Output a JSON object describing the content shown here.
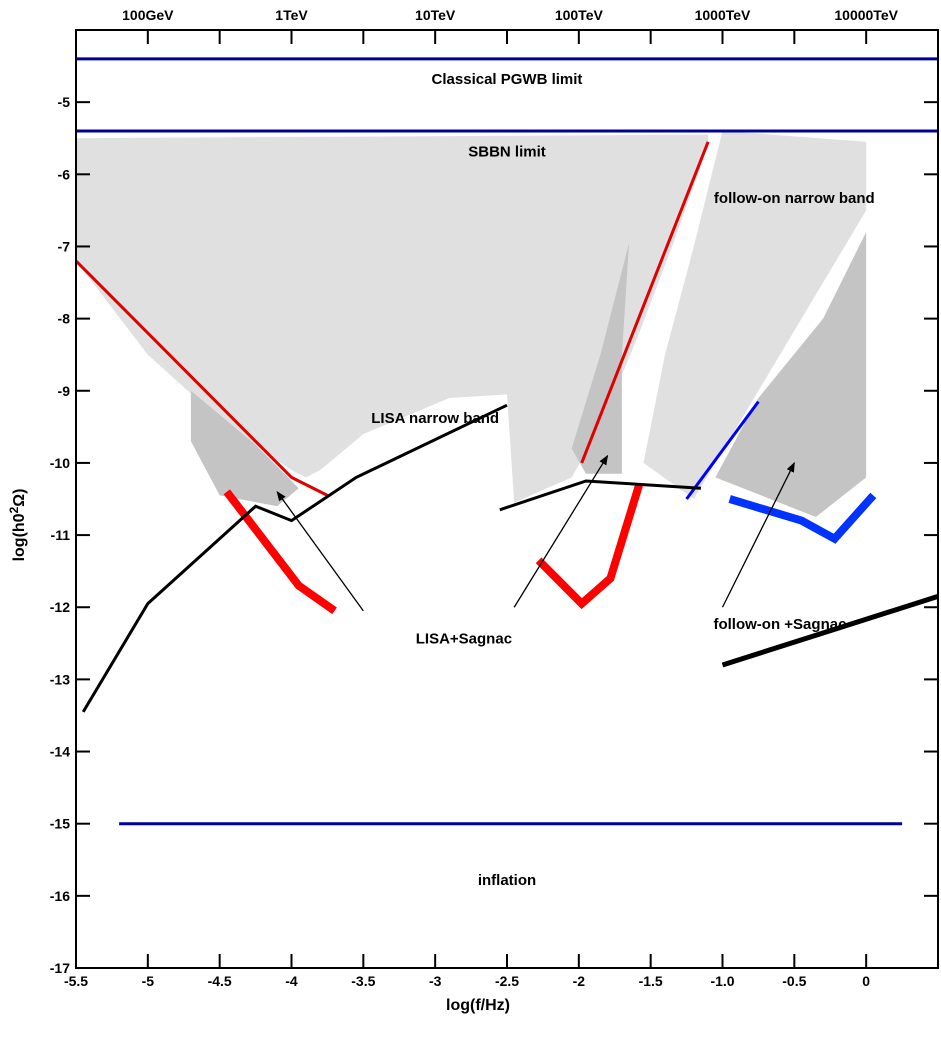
{
  "chart_data": {
    "type": "line",
    "title": "",
    "xlabel": "log(f/Hz)",
    "ylabel": "log(h0",
    "ylabel_sup": "2",
    "ylabel_tail": "Ω)",
    "xlim": [
      -5.5,
      0.5
    ],
    "ylim": [
      -17,
      -4
    ],
    "x_ticks": [
      {
        "v": -5.5,
        "label": "-5.5"
      },
      {
        "v": -5,
        "label": "-5"
      },
      {
        "v": -4.5,
        "label": "-4.5"
      },
      {
        "v": -4,
        "label": "-4"
      },
      {
        "v": -3.5,
        "label": "-3.5"
      },
      {
        "v": -3,
        "label": "-3"
      },
      {
        "v": -2.5,
        "label": "-2.5"
      },
      {
        "v": -2,
        "label": "-2"
      },
      {
        "v": -1.5,
        "label": "-1.5"
      },
      {
        "v": -1,
        "label": "-1.0"
      },
      {
        "v": -0.5,
        "label": "-0.5"
      },
      {
        "v": 0,
        "label": "0"
      }
    ],
    "y_ticks": [
      {
        "v": -5,
        "label": "-5"
      },
      {
        "v": -6,
        "label": "-6"
      },
      {
        "v": -7,
        "label": "-7"
      },
      {
        "v": -8,
        "label": "-8"
      },
      {
        "v": -9,
        "label": "-9"
      },
      {
        "v": -10,
        "label": "-10"
      },
      {
        "v": -11,
        "label": "-11"
      },
      {
        "v": -12,
        "label": "-12"
      },
      {
        "v": -13,
        "label": "-13"
      },
      {
        "v": -14,
        "label": "-14"
      },
      {
        "v": -15,
        "label": "-15"
      },
      {
        "v": -16,
        "label": "-16"
      },
      {
        "v": -17,
        "label": "-17"
      }
    ],
    "top_ticks": [
      {
        "v": -5,
        "label": "100GeV"
      },
      {
        "v": -4,
        "label": "1TeV"
      },
      {
        "v": -3,
        "label": "10TeV"
      },
      {
        "v": -2,
        "label": "100TeV"
      },
      {
        "v": -1,
        "label": "1000TeV"
      },
      {
        "v": 0,
        "label": "10000TeV"
      }
    ],
    "regions": [
      {
        "name": "LISA narrow band",
        "color": "#e0e0e0",
        "points": [
          [
            -5.5,
            -5.5
          ],
          [
            -1.1,
            -5.45
          ],
          [
            -1.1,
            -5.6
          ],
          [
            -1.35,
            -7
          ],
          [
            -1.6,
            -8.3
          ],
          [
            -1.85,
            -9.5
          ],
          [
            -2.05,
            -10.2
          ],
          [
            -2.45,
            -10.55
          ],
          [
            -2.5,
            -9.05
          ],
          [
            -2.9,
            -9.1
          ],
          [
            -3.5,
            -9.6
          ],
          [
            -3.8,
            -10.1
          ],
          [
            -3.9,
            -10.2
          ],
          [
            -4.0,
            -10.1
          ],
          [
            -4.5,
            -9.4
          ],
          [
            -5.0,
            -8.5
          ],
          [
            -5.5,
            -7.2
          ]
        ]
      },
      {
        "name": "follow-on narrow band",
        "color": "#e0e0e0",
        "points": [
          [
            -1.0,
            -5.4
          ],
          [
            0.0,
            -5.55
          ],
          [
            0.0,
            -6.5
          ],
          [
            -0.3,
            -7.5
          ],
          [
            -0.6,
            -8.5
          ],
          [
            -0.9,
            -9.5
          ],
          [
            -1.2,
            -10.5
          ],
          [
            -1.55,
            -10.0
          ],
          [
            -1.4,
            -8.5
          ],
          [
            -1.2,
            -7.0
          ]
        ]
      },
      {
        "name": "LISA+Sagnac",
        "color": "#c4c4c4",
        "points": [
          [
            -4.7,
            -9.0
          ],
          [
            -4.25,
            -9.75
          ],
          [
            -3.95,
            -10.35
          ],
          [
            -4.1,
            -10.6
          ],
          [
            -4.5,
            -10.45
          ],
          [
            -4.7,
            -9.7
          ]
        ]
      },
      {
        "name": "LISA+Sagnac",
        "color": "#c4c4c4",
        "points": [
          [
            -1.65,
            -6.95
          ],
          [
            -1.85,
            -8.5
          ],
          [
            -2.05,
            -9.8
          ],
          [
            -1.95,
            -10.15
          ],
          [
            -1.7,
            -10.15
          ],
          [
            -1.7,
            -8.5
          ]
        ]
      },
      {
        "name": "follow-on +Sagnac",
        "color": "#c4c4c4",
        "points": [
          [
            0.0,
            -6.8
          ],
          [
            0.0,
            -10.2
          ],
          [
            -0.35,
            -10.75
          ],
          [
            -1.05,
            -10.2
          ],
          [
            -0.75,
            -9.1
          ],
          [
            -0.3,
            -8.0
          ]
        ]
      }
    ],
    "series": [
      {
        "color": "#00009a",
        "width": 3,
        "points": [
          [
            -5.5,
            -4.4
          ],
          [
            0.5,
            -4.4
          ]
        ]
      },
      {
        "color": "#00009a",
        "width": 3,
        "points": [
          [
            -5.5,
            -5.4
          ],
          [
            0.5,
            -5.4
          ]
        ]
      },
      {
        "color": "#00009a",
        "width": 3,
        "points": [
          [
            -5.2,
            -15.0
          ],
          [
            0.25,
            -15.0
          ]
        ]
      },
      {
        "color": "#e00000",
        "width": 3,
        "points": [
          [
            -5.5,
            -7.2
          ],
          [
            -4.0,
            -10.2
          ],
          [
            -3.75,
            -10.45
          ]
        ]
      },
      {
        "color": "#e00000",
        "width": 3,
        "points": [
          [
            -1.98,
            -10.0
          ],
          [
            -1.1,
            -5.55
          ]
        ]
      },
      {
        "color": "#ff0000",
        "width": 8,
        "points": [
          [
            -4.45,
            -10.4
          ],
          [
            -3.95,
            -11.7
          ],
          [
            -3.7,
            -12.05
          ]
        ]
      },
      {
        "color": "#ff0000",
        "width": 8,
        "points": [
          [
            -2.28,
            -11.35
          ],
          [
            -1.98,
            -11.95
          ],
          [
            -1.78,
            -11.6
          ],
          [
            -1.58,
            -10.3
          ]
        ]
      },
      {
        "color": "#0000ff",
        "width": 3,
        "points": [
          [
            -1.25,
            -10.5
          ],
          [
            -0.75,
            -9.15
          ]
        ]
      },
      {
        "color": "#0033ff",
        "width": 8,
        "points": [
          [
            -0.95,
            -10.5
          ],
          [
            -0.45,
            -10.8
          ],
          [
            -0.22,
            -11.05
          ],
          [
            0.05,
            -10.45
          ]
        ]
      },
      {
        "color": "#000000",
        "width": 3,
        "points": [
          [
            -5.45,
            -13.45
          ],
          [
            -5.0,
            -11.95
          ],
          [
            -4.25,
            -10.6
          ],
          [
            -4.0,
            -10.8
          ],
          [
            -3.55,
            -10.2
          ],
          [
            -2.5,
            -9.2
          ]
        ]
      },
      {
        "color": "#000000",
        "width": 3,
        "points": [
          [
            -2.55,
            -10.65
          ],
          [
            -1.95,
            -10.25
          ],
          [
            -1.15,
            -10.35
          ]
        ]
      },
      {
        "color": "#000000",
        "width": 5,
        "points": [
          [
            -1.0,
            -12.8
          ],
          [
            0.5,
            -11.85
          ]
        ]
      }
    ],
    "annotations": [
      {
        "text": "Classical PGWB limit",
        "x": -2.5,
        "y": -4.75,
        "anchor": "middle"
      },
      {
        "text": "SBBN limit",
        "x": -2.5,
        "y": -5.75,
        "anchor": "middle"
      },
      {
        "text": "follow-on   narrow band",
        "x": -0.5,
        "y": -6.4,
        "anchor": "middle"
      },
      {
        "text": "LISA  narrow band",
        "x": -3.0,
        "y": -9.45,
        "anchor": "middle"
      },
      {
        "text": "LISA+Sagnac",
        "x": -2.8,
        "y": -12.5,
        "anchor": "middle"
      },
      {
        "text": "follow-on +Sagnac",
        "x": -0.6,
        "y": -12.3,
        "anchor": "middle"
      },
      {
        "text": "inflation",
        "x": -2.5,
        "y": -15.85,
        "anchor": "middle"
      }
    ],
    "arrows": [
      {
        "from": [
          -3.5,
          -12.05
        ],
        "to": [
          -4.1,
          -10.4
        ]
      },
      {
        "from": [
          -2.45,
          -12.0
        ],
        "to": [
          -1.8,
          -9.9
        ]
      },
      {
        "from": [
          -1.0,
          -12.0
        ],
        "to": [
          -0.5,
          -10.0
        ]
      }
    ]
  }
}
